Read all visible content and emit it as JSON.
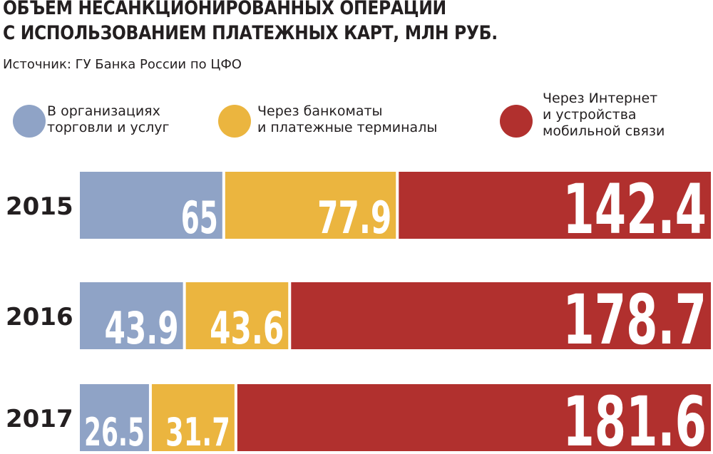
{
  "header": {
    "title_line1": "ОБЪЕМ НЕСАНКЦИОНИРОВАННЫХ ОПЕРАЦИЙ",
    "title_line2": "С ИСПОЛЬЗОВАНИЕМ ПЛАТЕЖНЫХ КАРТ, МЛН РУБ.",
    "source": "Источник: ГУ Банка России по ЦФО"
  },
  "legend": [
    {
      "line1": "В организациях",
      "line2": "торговли и услуг",
      "line3": "",
      "color": "#8fa3c6"
    },
    {
      "line1": "Через банкоматы",
      "line2": "и платежные терминалы",
      "line3": "",
      "color": "#ebb53f"
    },
    {
      "line1": "Через Интернет",
      "line2": "и устройства",
      "line3": "мобильной связи",
      "color": "#b1302e"
    }
  ],
  "chart_data": {
    "type": "bar",
    "orientation": "horizontal",
    "stacked": true,
    "title": "ОБЪЕМ НЕСАНКЦИОНИРОВАННЫХ ОПЕРАЦИЙ С ИСПОЛЬЗОВАНИЕМ ПЛАТЕЖНЫХ КАРТ, МЛН РУБ.",
    "xlabel": "",
    "ylabel": "",
    "legend_position": "top",
    "grid": false,
    "categories": [
      "2015",
      "2016",
      "2017"
    ],
    "series": [
      {
        "name": "В организациях торговли и услуг",
        "values": [
          65,
          43.9,
          26.5
        ],
        "labels": [
          "65",
          "43.9",
          "26.5"
        ],
        "color": "#8fa3c6"
      },
      {
        "name": "Через банкоматы и платежные терминалы",
        "values": [
          77.9,
          43.6,
          31.7
        ],
        "labels": [
          "77.9",
          "43.6",
          "31.7"
        ],
        "color": "#ebb53f"
      },
      {
        "name": "Через Интернет и устройства мобильной связи",
        "values": [
          142.4,
          178.7,
          181.6
        ],
        "labels": [
          "142.4",
          "178.7",
          "181.6"
        ],
        "color": "#b1302e"
      }
    ]
  }
}
